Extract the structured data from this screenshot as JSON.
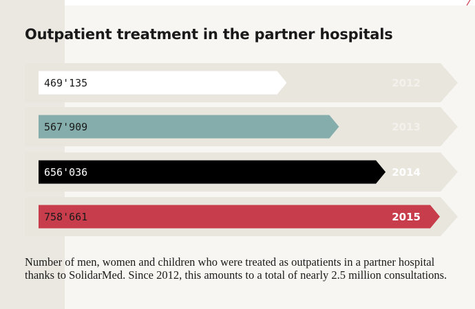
{
  "title": "Outpatient treatment in the partner hospitals",
  "caption": "Number of men, women and children who were treated as outpatients in a partner hospital thanks to SolidarMed. Since 2012, this amounts to a total of nearly 2.5 million consultations.",
  "colors": {
    "background": "#f7f6f2",
    "track": "#e9e6de",
    "year_on_track": "#f3f1ec",
    "year_highlight": "#ffffff"
  },
  "chart_data": {
    "type": "bar",
    "orientation": "horizontal",
    "title": "Outpatient treatment in the partner hospitals",
    "xlim": [
      0,
      870000
    ],
    "grid": false,
    "categories": [
      "2012",
      "2013",
      "2014",
      "2015"
    ],
    "values": [
      469135,
      567909,
      656036,
      758661
    ],
    "value_labels": [
      "469'135",
      "567'909",
      "656'036",
      "758'661"
    ],
    "bar_colors": [
      "#ffffff",
      "#85adab",
      "#000000",
      "#c83d4b"
    ],
    "value_label_colors": [
      "#1a1a1a",
      "#1a1a1a",
      "#ffffff",
      "#1a1a1a"
    ]
  }
}
